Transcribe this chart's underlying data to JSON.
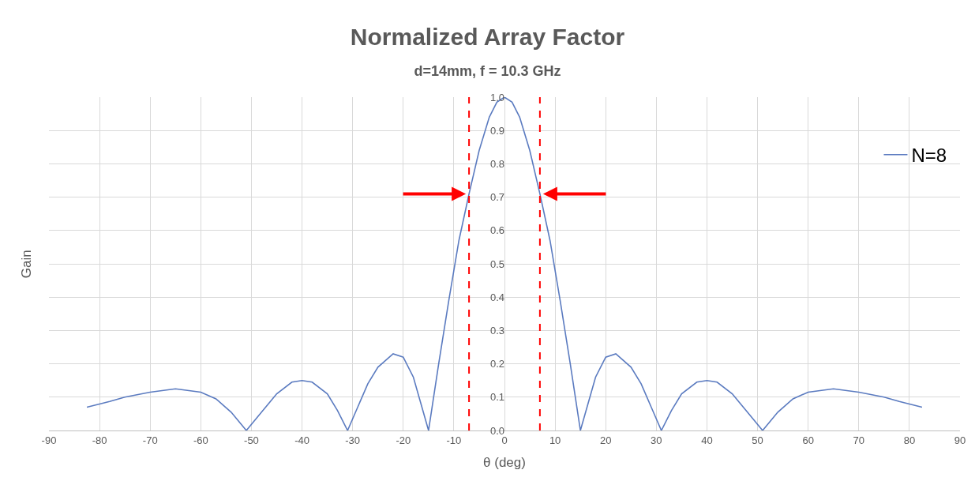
{
  "chart_data": {
    "type": "line",
    "title": "Normalized Array Factor",
    "subtitle": "d=14mm, f = 10.3 GHz",
    "xlabel": "θ (deg)",
    "ylabel": "Gain",
    "series": [
      {
        "name": "N=8",
        "color": "#5b7bc0",
        "x": [
          -82.5,
          -78,
          -75,
          -70,
          -65,
          -60,
          -57,
          -54,
          -51,
          -48,
          -45,
          -42,
          -40,
          -38,
          -35,
          -33,
          -31,
          -29,
          -27,
          -25,
          -22,
          -20,
          -18,
          -16.5,
          -15,
          -13,
          -11,
          -9,
          -7,
          -5,
          -3,
          -1.5,
          0,
          1.5,
          3,
          5,
          7,
          9,
          11,
          13,
          15,
          16.5,
          18,
          20,
          22,
          25,
          27,
          29,
          31,
          33,
          35,
          38,
          40,
          42,
          45,
          48,
          51,
          54,
          57,
          60,
          65,
          70,
          75,
          78,
          82.5
        ],
        "values": [
          0.07,
          0.087,
          0.1,
          0.115,
          0.125,
          0.115,
          0.095,
          0.055,
          0,
          0.055,
          0.11,
          0.145,
          0.15,
          0.145,
          0.11,
          0.06,
          0,
          0.07,
          0.14,
          0.19,
          0.23,
          0.22,
          0.16,
          0.08,
          0,
          0.2,
          0.39,
          0.57,
          0.71,
          0.84,
          0.94,
          0.985,
          1.0,
          0.985,
          0.94,
          0.84,
          0.71,
          0.57,
          0.39,
          0.2,
          0,
          0.08,
          0.16,
          0.22,
          0.23,
          0.19,
          0.14,
          0.07,
          0,
          0.06,
          0.11,
          0.145,
          0.15,
          0.145,
          0.11,
          0.055,
          0,
          0.055,
          0.095,
          0.115,
          0.125,
          0.115,
          0.1,
          0.087,
          0.07
        ]
      }
    ],
    "xlim": [
      -90,
      90
    ],
    "xticks": [
      -90,
      -80,
      -70,
      -60,
      -50,
      -40,
      -30,
      -20,
      -10,
      0,
      10,
      20,
      30,
      40,
      50,
      60,
      70,
      80,
      90
    ],
    "ylim": [
      0,
      1
    ],
    "yticks": [
      {
        "value": 0,
        "label": "0.0"
      },
      0.1,
      0.2,
      0.3,
      0.4,
      0.5,
      0.6,
      0.7,
      0.8,
      0.9,
      {
        "value": 1,
        "label": "1.0"
      }
    ],
    "grid": true,
    "legend": "top right",
    "marker": "none",
    "line_style": "solid",
    "ref_lines": [
      {
        "axis": "x",
        "value": -7,
        "color": "#ff0000",
        "line_style": "dashed"
      },
      {
        "axis": "x",
        "value": 7,
        "color": "#ff0000",
        "line_style": "dashed"
      }
    ]
  }
}
